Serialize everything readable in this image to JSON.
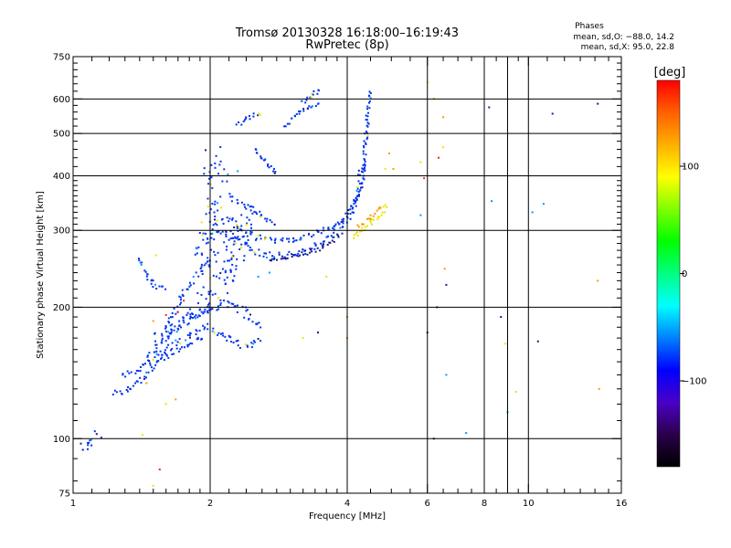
{
  "chart_data": {
    "type": "scatter",
    "title": "Tromsø 20130328 16:18:00–16:19:43",
    "subtitle": "RwPretec (8p)",
    "xlabel": "Frequency [MHz]",
    "ylabel": "Stationary phase Virtual Height [km]",
    "x_scale": "log",
    "y_scale": "log",
    "xlim": [
      1,
      16
    ],
    "ylim": [
      75,
      750
    ],
    "x_ticks": [
      1,
      2,
      4,
      6,
      8,
      10,
      16
    ],
    "x_tick_labels": [
      "1",
      "2",
      "4",
      "6",
      "8",
      "10",
      "16"
    ],
    "x_minor_ticks": [
      1.1,
      1.2,
      1.3,
      1.4,
      1.5,
      1.6,
      1.7,
      1.8,
      1.9,
      2.2,
      2.4,
      2.6,
      2.8,
      3,
      3.2,
      3.4,
      3.6,
      3.8,
      4.5,
      5,
      5.5,
      6.5,
      7,
      7.5,
      8.5,
      9,
      9.5,
      11,
      12,
      13,
      14,
      15
    ],
    "x_grid": [
      2,
      4,
      6,
      8,
      9,
      10
    ],
    "y_ticks": [
      75,
      100,
      200,
      300,
      400,
      500,
      600,
      750
    ],
    "y_tick_labels": [
      "75",
      "100",
      "200",
      "300",
      "400",
      "500",
      "600",
      "750"
    ],
    "y_minor_ticks": [
      80,
      90,
      110,
      120,
      130,
      140,
      150,
      160,
      170,
      180,
      190,
      210,
      220,
      230,
      240,
      250,
      260,
      270,
      280,
      290,
      310,
      320,
      330,
      340,
      350,
      360,
      370,
      380,
      390,
      420,
      440,
      460,
      480,
      520,
      540,
      560,
      580,
      625,
      650,
      675,
      700,
      725
    ],
    "y_grid": [
      100,
      200,
      300,
      400,
      500,
      600
    ],
    "grid": true,
    "stats_title": "Phases",
    "stats_o": "mean, sd,O: −88.0, 14.2",
    "stats_x": "mean, sd,X: 95.0, 22.8",
    "colorbar": {
      "label": "[deg]",
      "range": [
        -180,
        180
      ],
      "ticks": [
        100,
        0,
        -100
      ],
      "tick_labels": [
        "100",
        "0",
        "−100"
      ],
      "colors": [
        "#000000",
        "#2a004a",
        "#4b00c8",
        "#0000ff",
        "#0080ff",
        "#00ffff",
        "#00ff80",
        "#00ff00",
        "#80ff00",
        "#ffff00",
        "#ffb000",
        "#ff6000",
        "#ff0000"
      ]
    },
    "colors": {
      "blue": "#0033ee",
      "cyan": "#0099ff",
      "navy": "#1b1b90",
      "yellow": "#e6e600",
      "orange": "#ff9900",
      "red": "#ff2020"
    },
    "series": [
      {
        "shape": "polyline",
        "color": "blue",
        "spread": 0.012,
        "points": [
          [
            1.22,
            127
          ],
          [
            1.3,
            128
          ],
          [
            1.36,
            132
          ],
          [
            1.45,
            140
          ],
          [
            1.55,
            150
          ],
          [
            1.65,
            158
          ],
          [
            1.75,
            162
          ],
          [
            1.85,
            168
          ],
          [
            1.95,
            172
          ]
        ]
      },
      {
        "shape": "polyline",
        "color": "blue",
        "spread": 0.012,
        "points": [
          [
            1.28,
            140
          ],
          [
            1.35,
            141
          ],
          [
            1.42,
            147
          ],
          [
            1.5,
            158
          ],
          [
            1.6,
            170
          ],
          [
            1.7,
            180
          ],
          [
            1.8,
            186
          ],
          [
            1.9,
            192
          ],
          [
            2.0,
            198
          ]
        ]
      },
      {
        "shape": "polyline",
        "color": "blue",
        "spread": 0.015,
        "points": [
          [
            1.48,
            150
          ],
          [
            1.6,
            160
          ],
          [
            1.75,
            170
          ],
          [
            1.95,
            180
          ],
          [
            2.2,
            170
          ],
          [
            2.4,
            162
          ],
          [
            2.6,
            168
          ]
        ]
      },
      {
        "shape": "polyline",
        "color": "blue",
        "spread": 0.018,
        "points": [
          [
            1.5,
            170
          ],
          [
            1.65,
            178
          ],
          [
            1.8,
            190
          ],
          [
            2.0,
            200
          ],
          [
            2.2,
            205
          ],
          [
            2.4,
            195
          ],
          [
            2.6,
            180
          ]
        ]
      },
      {
        "shape": "polyline",
        "color": "blue",
        "spread": 0.01,
        "points": [
          [
            1.4,
            258
          ],
          [
            1.45,
            238
          ],
          [
            1.5,
            226
          ],
          [
            1.55,
            222
          ],
          [
            1.62,
            222
          ]
        ]
      },
      {
        "shape": "polyline",
        "color": "blue",
        "spread": 0.014,
        "points": [
          [
            1.6,
            177
          ],
          [
            1.75,
            215
          ],
          [
            1.9,
            240
          ],
          [
            2.0,
            262
          ]
        ]
      },
      {
        "shape": "polyline",
        "color": "blue",
        "spread": 0.015,
        "points": [
          [
            1.95,
            290
          ],
          [
            2.1,
            300
          ],
          [
            2.3,
            285
          ],
          [
            2.45,
            273
          ],
          [
            2.6,
            265
          ],
          [
            2.8,
            262
          ],
          [
            3.0,
            263
          ],
          [
            3.2,
            268
          ],
          [
            3.4,
            275
          ],
          [
            3.6,
            285
          ],
          [
            3.8,
            300
          ],
          [
            4.0,
            320
          ],
          [
            4.15,
            345
          ],
          [
            4.25,
            380
          ],
          [
            4.35,
            430
          ]
        ]
      },
      {
        "shape": "polyline",
        "color": "blue",
        "spread": 0.013,
        "points": [
          [
            2.05,
            310
          ],
          [
            2.2,
            318
          ],
          [
            2.35,
            300
          ],
          [
            2.5,
            290
          ],
          [
            2.7,
            285
          ],
          [
            2.9,
            284
          ],
          [
            3.1,
            286
          ],
          [
            3.3,
            292
          ],
          [
            3.5,
            298
          ],
          [
            3.7,
            305
          ],
          [
            3.9,
            312
          ],
          [
            4.05,
            322
          ]
        ]
      },
      {
        "shape": "polyline",
        "color": "navy",
        "spread": 0.01,
        "points": [
          [
            2.7,
            258
          ],
          [
            2.9,
            260
          ],
          [
            3.1,
            263
          ],
          [
            3.3,
            268
          ],
          [
            3.5,
            274
          ],
          [
            3.7,
            283
          ],
          [
            3.9,
            295
          ]
        ]
      },
      {
        "shape": "polyline",
        "color": "blue",
        "spread": 0.01,
        "points": [
          [
            4.05,
            330
          ],
          [
            4.2,
            350
          ],
          [
            4.3,
            380
          ],
          [
            4.35,
            420
          ],
          [
            4.4,
            480
          ],
          [
            4.45,
            560
          ],
          [
            4.48,
            630
          ]
        ]
      },
      {
        "shape": "polyline",
        "color": "blue",
        "spread": 0.012,
        "points": [
          [
            2.2,
            360
          ],
          [
            2.4,
            340
          ],
          [
            2.6,
            325
          ],
          [
            2.8,
            310
          ]
        ]
      },
      {
        "shape": "polyline",
        "color": "blue",
        "spread": 0.01,
        "points": [
          [
            2.3,
            520
          ],
          [
            2.4,
            540
          ],
          [
            2.5,
            555
          ],
          [
            2.6,
            560
          ]
        ]
      },
      {
        "shape": "polyline",
        "color": "blue",
        "spread": 0.01,
        "points": [
          [
            2.9,
            520
          ],
          [
            3.0,
            535
          ],
          [
            3.1,
            550
          ],
          [
            3.2,
            565
          ],
          [
            3.35,
            580
          ],
          [
            3.5,
            590
          ]
        ]
      },
      {
        "shape": "polyline",
        "color": "blue",
        "spread": 0.008,
        "points": [
          [
            3.2,
            590
          ],
          [
            3.3,
            605
          ],
          [
            3.4,
            620
          ],
          [
            3.5,
            628
          ]
        ]
      },
      {
        "shape": "polyline",
        "color": "blue",
        "spread": 0.01,
        "points": [
          [
            2.5,
            460
          ],
          [
            2.6,
            440
          ],
          [
            2.7,
            420
          ],
          [
            2.8,
            400
          ]
        ]
      },
      {
        "shape": "polyline",
        "color": "yellow",
        "spread": 0.01,
        "points": [
          [
            4.1,
            290
          ],
          [
            4.3,
            300
          ],
          [
            4.5,
            312
          ],
          [
            4.7,
            325
          ],
          [
            4.9,
            345
          ]
        ]
      },
      {
        "shape": "polyline",
        "color": "orange",
        "spread": 0.01,
        "points": [
          [
            4.2,
            305
          ],
          [
            4.4,
            315
          ],
          [
            4.6,
            328
          ],
          [
            4.8,
            340
          ]
        ]
      },
      {
        "shape": "polyline",
        "color": "blue",
        "spread": 0.018,
        "points": [
          [
            1.05,
            95
          ],
          [
            1.1,
            100
          ],
          [
            1.15,
            103
          ]
        ]
      },
      {
        "shape": "polyline",
        "color": "blue",
        "spread": 0.05,
        "points": [
          [
            1.8,
            200
          ],
          [
            2.0,
            210
          ],
          [
            2.2,
            260
          ],
          [
            2.4,
            320
          ],
          [
            2.2,
            240
          ],
          [
            1.9,
            260
          ],
          [
            2.1,
            380
          ],
          [
            2.0,
            450
          ]
        ]
      },
      {
        "shape": "points",
        "color": "red",
        "points": [
          [
            1.6,
            192
          ],
          [
            1.7,
            195
          ],
          [
            1.55,
            85
          ],
          [
            1.75,
            207
          ],
          [
            6.35,
            440
          ],
          [
            5.9,
            395
          ]
        ]
      },
      {
        "shape": "points",
        "color": "orange",
        "points": [
          [
            1.5,
            186
          ],
          [
            1.45,
            134
          ],
          [
            1.68,
            123
          ],
          [
            4.0,
            190
          ],
          [
            4.0,
            170
          ],
          [
            6.5,
            545
          ],
          [
            4.95,
            450
          ],
          [
            5.05,
            415
          ],
          [
            6.55,
            245
          ],
          [
            14.2,
            230
          ],
          [
            14.3,
            130
          ],
          [
            6.2,
            600
          ]
        ]
      },
      {
        "shape": "points",
        "color": "yellow",
        "points": [
          [
            1.52,
            263
          ],
          [
            1.6,
            120
          ],
          [
            1.42,
            102
          ],
          [
            3.2,
            170
          ],
          [
            3.6,
            235
          ],
          [
            8.9,
            165
          ],
          [
            9.4,
            128
          ],
          [
            6.0,
            655
          ],
          [
            6.5,
            465
          ],
          [
            5.8,
            430
          ],
          [
            4.85,
            415
          ],
          [
            1.5,
            78
          ]
        ]
      },
      {
        "shape": "points",
        "color": "cyan",
        "points": [
          [
            2.7,
            240
          ],
          [
            2.55,
            235
          ],
          [
            6.6,
            140
          ],
          [
            8.3,
            350
          ],
          [
            10.2,
            330
          ],
          [
            10.8,
            345
          ],
          [
            5.8,
            325
          ],
          [
            9.0,
            115
          ],
          [
            7.3,
            103
          ],
          [
            2.3,
            410
          ]
        ]
      },
      {
        "shape": "points",
        "color": "navy",
        "points": [
          [
            8.2,
            574
          ],
          [
            8.7,
            190
          ],
          [
            10.5,
            167
          ],
          [
            11.3,
            555
          ],
          [
            14.2,
            585
          ],
          [
            6.2,
            100
          ],
          [
            6.6,
            225
          ],
          [
            6.3,
            200
          ],
          [
            6.0,
            175
          ],
          [
            3.45,
            175
          ]
        ]
      }
    ]
  }
}
